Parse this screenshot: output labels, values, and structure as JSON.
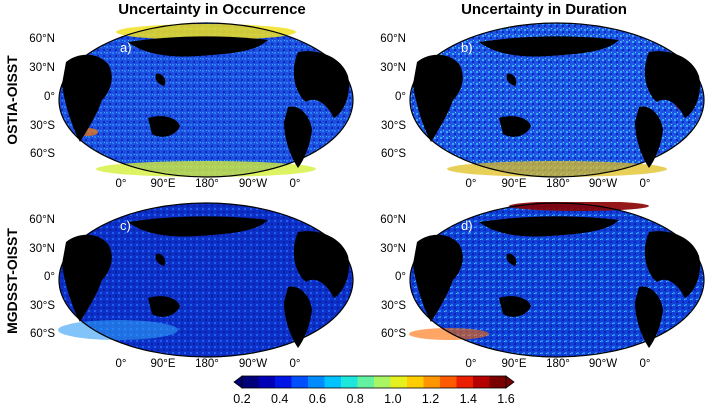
{
  "columns": [
    "Uncertainty in Occurrence",
    "Uncertainty in Duration"
  ],
  "rows": [
    "OSTIA-OISST",
    "MGDSST-OISST"
  ],
  "panels": [
    {
      "label": "a)"
    },
    {
      "label": "b)"
    },
    {
      "label": "c)"
    },
    {
      "label": "d)"
    }
  ],
  "lat_labels": [
    "60°N",
    "30°N",
    "0°",
    "30°S",
    "60°S"
  ],
  "lon_labels": [
    "0°",
    "90°E",
    "180°",
    "90°W",
    "0°"
  ],
  "colorbar": {
    "ticks": [
      "0.2",
      "0.4",
      "0.6",
      "0.8",
      "1.0",
      "1.2",
      "1.4",
      "1.6"
    ],
    "colors": [
      "#00007a",
      "#0000b4",
      "#0016e6",
      "#0050ff",
      "#008cff",
      "#00c3ff",
      "#1ee6dc",
      "#64f2a0",
      "#aaf564",
      "#e6f01e",
      "#ffcd00",
      "#ff9600",
      "#ff5a00",
      "#eb1e00",
      "#b40000",
      "#7a0000"
    ]
  }
}
